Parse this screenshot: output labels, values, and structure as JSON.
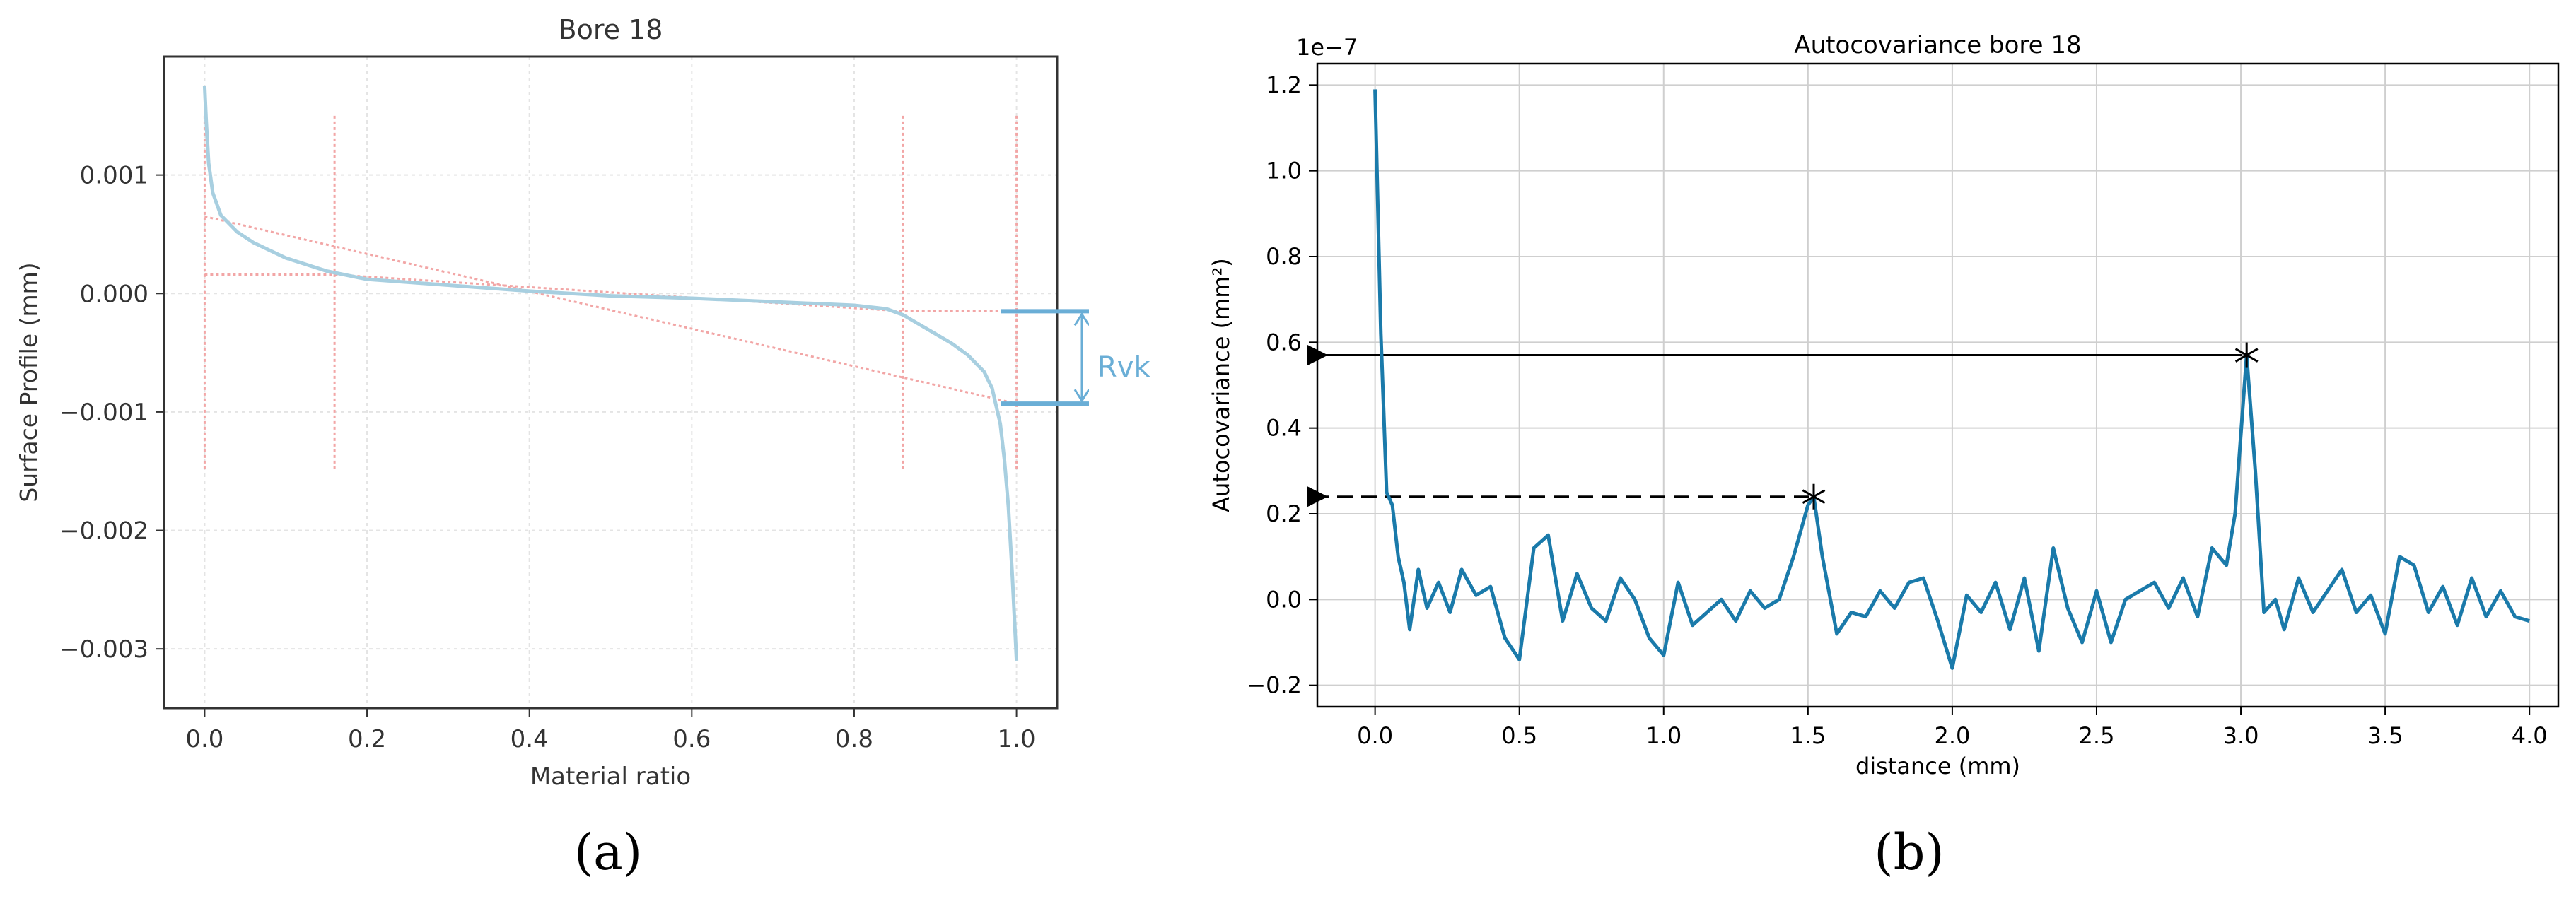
{
  "chart_data": [
    {
      "panel_label": "a",
      "type": "line",
      "title": "Bore 18",
      "xlabel": "Material ratio",
      "ylabel": "Surface Profile (mm)",
      "xlim": [
        -0.05,
        1.05
      ],
      "ylim": [
        -0.0035,
        0.002
      ],
      "x_ticks": [
        0.0,
        0.2,
        0.4,
        0.6,
        0.8,
        1.0
      ],
      "x_tick_labels": [
        "0.0",
        "0.2",
        "0.4",
        "0.6",
        "0.8",
        "1.0"
      ],
      "y_ticks": [
        0.001,
        0.0,
        -0.001,
        -0.002,
        -0.003
      ],
      "y_tick_labels": [
        "0.001",
        "0.000",
        "−0.001",
        "−0.002",
        "−0.003"
      ],
      "grid": true,
      "annotation": {
        "text": "Rvk",
        "upper": -0.00015,
        "lower": -0.00093
      },
      "colors": {
        "curve": "#a8cfe0",
        "construction": "#f2a6a6",
        "annotation": "#6aaed6"
      },
      "series": [
        {
          "role": "profile",
          "x": [
            0.0,
            0.002,
            0.005,
            0.01,
            0.02,
            0.04,
            0.06,
            0.1,
            0.15,
            0.2,
            0.3,
            0.4,
            0.5,
            0.6,
            0.7,
            0.8,
            0.84,
            0.86,
            0.88,
            0.9,
            0.92,
            0.94,
            0.96,
            0.97,
            0.98,
            0.985,
            0.99,
            0.995,
            1.0
          ],
          "y": [
            0.00175,
            0.00145,
            0.0011,
            0.00085,
            0.00066,
            0.00052,
            0.00043,
            0.0003,
            0.00019,
            0.00012,
            7e-05,
            2e-05,
            -2e-05,
            -4e-05,
            -7e-05,
            -0.0001,
            -0.00013,
            -0.00018,
            -0.00026,
            -0.00034,
            -0.00042,
            -0.00052,
            -0.00066,
            -0.0008,
            -0.0011,
            -0.0014,
            -0.0018,
            -0.0024,
            -0.0031
          ]
        },
        {
          "role": "core-line",
          "x": [
            0.0,
            1.0
          ],
          "y": [
            0.00065,
            -0.00093
          ]
        },
        {
          "role": "bounds",
          "x": [
            0.0,
            0.16,
            0.86,
            1.0
          ],
          "y": [
            0.00016,
            0.00016,
            -0.00015,
            -0.00015
          ]
        }
      ],
      "vertical_markers": {
        "x": [
          0.0,
          0.16,
          0.86,
          1.0
        ],
        "ymin": -0.0015,
        "ymax": 0.0015
      }
    },
    {
      "panel_label": "b",
      "type": "line",
      "title": "Autocovariance bore 18",
      "xlabel": "distance (mm)",
      "ylabel": "Autocovariance (mm²)",
      "offset_text": "1e−7",
      "xlim": [
        -0.2,
        4.1
      ],
      "ylim": [
        -0.25,
        1.25
      ],
      "x_ticks": [
        0.0,
        0.5,
        1.0,
        1.5,
        2.0,
        2.5,
        3.0,
        3.5,
        4.0
      ],
      "x_tick_labels": [
        "0.0",
        "0.5",
        "1.0",
        "1.5",
        "2.0",
        "2.5",
        "3.0",
        "3.5",
        "4.0"
      ],
      "y_ticks": [
        -0.2,
        0.0,
        0.2,
        0.4,
        0.6,
        0.8,
        1.0,
        1.2
      ],
      "y_tick_labels": [
        "−0.2",
        "0.0",
        "0.2",
        "0.4",
        "0.6",
        "0.8",
        "1.0",
        "1.2"
      ],
      "grid": true,
      "colors": {
        "curve": "#1a7aaa",
        "arrows": "#000000"
      },
      "peaks": [
        {
          "x": 3.02,
          "y": 0.57,
          "arrow": "solid"
        },
        {
          "x": 1.52,
          "y": 0.24,
          "arrow": "dashed"
        }
      ],
      "series": [
        {
          "role": "autocovariance",
          "x": [
            0.0,
            0.02,
            0.04,
            0.06,
            0.08,
            0.1,
            0.12,
            0.15,
            0.18,
            0.22,
            0.26,
            0.3,
            0.35,
            0.4,
            0.45,
            0.5,
            0.55,
            0.6,
            0.65,
            0.7,
            0.75,
            0.8,
            0.85,
            0.9,
            0.95,
            1.0,
            1.05,
            1.1,
            1.15,
            1.2,
            1.25,
            1.3,
            1.35,
            1.4,
            1.45,
            1.5,
            1.52,
            1.55,
            1.6,
            1.65,
            1.7,
            1.75,
            1.8,
            1.85,
            1.9,
            1.95,
            2.0,
            2.05,
            2.1,
            2.15,
            2.2,
            2.25,
            2.3,
            2.35,
            2.4,
            2.45,
            2.5,
            2.55,
            2.6,
            2.65,
            2.7,
            2.75,
            2.8,
            2.85,
            2.9,
            2.95,
            2.98,
            3.02,
            3.05,
            3.08,
            3.12,
            3.15,
            3.2,
            3.25,
            3.3,
            3.35,
            3.4,
            3.45,
            3.5,
            3.55,
            3.6,
            3.65,
            3.7,
            3.75,
            3.8,
            3.85,
            3.9,
            3.95,
            4.0
          ],
          "y": [
            1.19,
            0.62,
            0.25,
            0.22,
            0.1,
            0.04,
            -0.07,
            0.07,
            -0.02,
            0.04,
            -0.03,
            0.07,
            0.01,
            0.03,
            -0.09,
            -0.14,
            0.12,
            0.15,
            -0.05,
            0.06,
            -0.02,
            -0.05,
            0.05,
            0.0,
            -0.09,
            -0.13,
            0.04,
            -0.06,
            -0.03,
            0.0,
            -0.05,
            0.02,
            -0.02,
            0.0,
            0.1,
            0.22,
            0.24,
            0.1,
            -0.08,
            -0.03,
            -0.04,
            0.02,
            -0.02,
            0.04,
            0.05,
            -0.05,
            -0.16,
            0.01,
            -0.03,
            0.04,
            -0.07,
            0.05,
            -0.12,
            0.12,
            -0.02,
            -0.1,
            0.02,
            -0.1,
            0.0,
            0.02,
            0.04,
            -0.02,
            0.05,
            -0.04,
            0.12,
            0.08,
            0.2,
            0.57,
            0.3,
            -0.03,
            0.0,
            -0.07,
            0.05,
            -0.03,
            0.02,
            0.07,
            -0.03,
            0.01,
            -0.08,
            0.1,
            0.08,
            -0.03,
            0.03,
            -0.06,
            0.05,
            -0.04,
            0.02,
            -0.04,
            -0.05
          ]
        }
      ]
    }
  ],
  "captions": {
    "a": "(a)",
    "b": "(b)"
  }
}
